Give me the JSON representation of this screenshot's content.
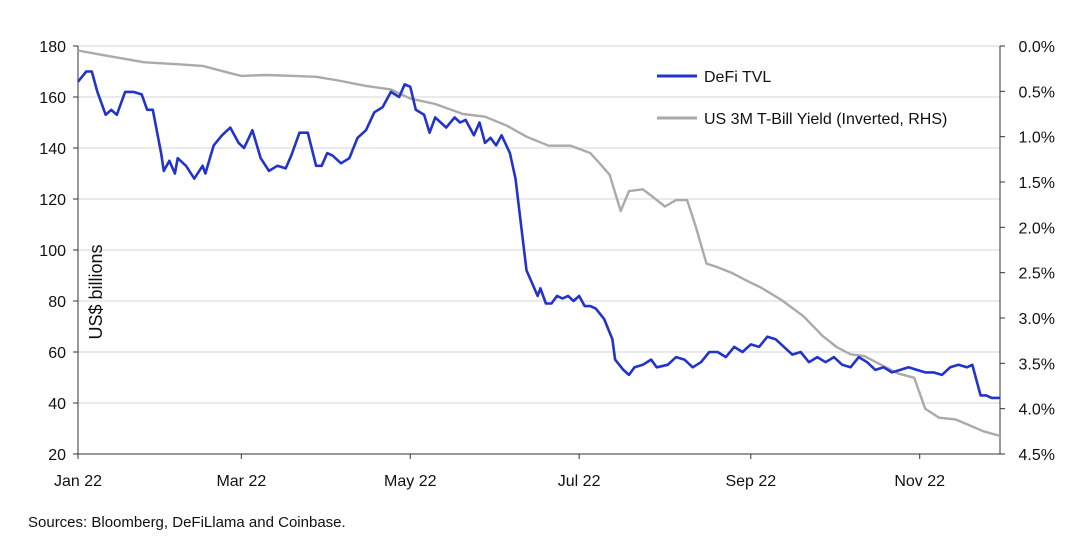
{
  "chart_data": {
    "type": "line",
    "x_labels": [
      "Jan 22",
      "Mar 22",
      "May 22",
      "Jul 22",
      "Sep 22",
      "Nov 22"
    ],
    "x_ticks": [
      "2022-01-01",
      "2022-03-01",
      "2022-05-01",
      "2022-07-01",
      "2022-09-01",
      "2022-11-01"
    ],
    "x_range": [
      "2022-01-01",
      "2022-11-30"
    ],
    "left_axis": {
      "label": "US$ billions",
      "ylim": [
        20,
        180
      ],
      "ticks": [
        180,
        160,
        140,
        120,
        100,
        80,
        60,
        40,
        20
      ]
    },
    "right_axis": {
      "label": "",
      "ylim": [
        0.0,
        4.5
      ],
      "inverted": true,
      "ticks": [
        "0.0%",
        "0.5%",
        "1.0%",
        "1.5%",
        "2.0%",
        "2.5%",
        "3.0%",
        "3.5%",
        "4.0%",
        "4.5%"
      ]
    },
    "grid": true,
    "legend_position": "top-right",
    "series": [
      {
        "name": "DeFi TVL",
        "axis": "left",
        "color": "#2233cc",
        "points": [
          [
            "2022-01-01",
            166
          ],
          [
            "2022-01-04",
            170
          ],
          [
            "2022-01-06",
            170
          ],
          [
            "2022-01-08",
            162
          ],
          [
            "2022-01-11",
            153
          ],
          [
            "2022-01-13",
            155
          ],
          [
            "2022-01-15",
            153
          ],
          [
            "2022-01-18",
            162
          ],
          [
            "2022-01-21",
            162
          ],
          [
            "2022-01-24",
            161
          ],
          [
            "2022-01-26",
            155
          ],
          [
            "2022-01-28",
            155
          ],
          [
            "2022-01-31",
            138
          ],
          [
            "2022-02-01",
            131
          ],
          [
            "2022-02-03",
            135
          ],
          [
            "2022-02-05",
            130
          ],
          [
            "2022-02-06",
            136
          ],
          [
            "2022-02-09",
            133
          ],
          [
            "2022-02-12",
            128
          ],
          [
            "2022-02-15",
            133
          ],
          [
            "2022-02-16",
            130
          ],
          [
            "2022-02-19",
            141
          ],
          [
            "2022-02-22",
            145
          ],
          [
            "2022-02-25",
            148
          ],
          [
            "2022-02-28",
            142
          ],
          [
            "2022-03-02",
            140
          ],
          [
            "2022-03-05",
            147
          ],
          [
            "2022-03-08",
            136
          ],
          [
            "2022-03-11",
            131
          ],
          [
            "2022-03-14",
            133
          ],
          [
            "2022-03-17",
            132
          ],
          [
            "2022-03-19",
            137
          ],
          [
            "2022-03-22",
            146
          ],
          [
            "2022-03-25",
            146
          ],
          [
            "2022-03-28",
            133
          ],
          [
            "2022-03-30",
            133
          ],
          [
            "2022-04-01",
            138
          ],
          [
            "2022-04-03",
            137
          ],
          [
            "2022-04-06",
            134
          ],
          [
            "2022-04-09",
            136
          ],
          [
            "2022-04-12",
            144
          ],
          [
            "2022-04-15",
            147
          ],
          [
            "2022-04-18",
            154
          ],
          [
            "2022-04-21",
            156
          ],
          [
            "2022-04-24",
            162
          ],
          [
            "2022-04-27",
            160
          ],
          [
            "2022-04-29",
            165
          ],
          [
            "2022-05-01",
            164
          ],
          [
            "2022-05-03",
            155
          ],
          [
            "2022-05-06",
            153
          ],
          [
            "2022-05-08",
            146
          ],
          [
            "2022-05-10",
            152
          ],
          [
            "2022-05-12",
            150
          ],
          [
            "2022-05-14",
            148
          ],
          [
            "2022-05-17",
            152
          ],
          [
            "2022-05-19",
            150
          ],
          [
            "2022-05-21",
            151
          ],
          [
            "2022-05-24",
            145
          ],
          [
            "2022-05-26",
            150
          ],
          [
            "2022-05-28",
            142
          ],
          [
            "2022-05-30",
            144
          ],
          [
            "2022-06-01",
            141
          ],
          [
            "2022-06-03",
            145
          ],
          [
            "2022-06-06",
            138
          ],
          [
            "2022-06-08",
            128
          ],
          [
            "2022-06-10",
            110
          ],
          [
            "2022-06-12",
            92
          ],
          [
            "2022-06-14",
            87
          ],
          [
            "2022-06-16",
            82
          ],
          [
            "2022-06-17",
            85
          ],
          [
            "2022-06-19",
            79
          ],
          [
            "2022-06-21",
            79
          ],
          [
            "2022-06-23",
            82
          ],
          [
            "2022-06-25",
            81
          ],
          [
            "2022-06-27",
            82
          ],
          [
            "2022-06-29",
            80
          ],
          [
            "2022-07-01",
            82
          ],
          [
            "2022-07-03",
            78
          ],
          [
            "2022-07-05",
            78
          ],
          [
            "2022-07-07",
            77
          ],
          [
            "2022-07-10",
            73
          ],
          [
            "2022-07-13",
            65
          ],
          [
            "2022-07-14",
            57
          ],
          [
            "2022-07-17",
            53
          ],
          [
            "2022-07-19",
            51
          ],
          [
            "2022-07-21",
            54
          ],
          [
            "2022-07-24",
            55
          ],
          [
            "2022-07-27",
            57
          ],
          [
            "2022-07-29",
            54
          ],
          [
            "2022-08-02",
            55
          ],
          [
            "2022-08-05",
            58
          ],
          [
            "2022-08-08",
            57
          ],
          [
            "2022-08-11",
            54
          ],
          [
            "2022-08-14",
            56
          ],
          [
            "2022-08-17",
            60
          ],
          [
            "2022-08-20",
            60
          ],
          [
            "2022-08-23",
            58
          ],
          [
            "2022-08-26",
            62
          ],
          [
            "2022-08-29",
            60
          ],
          [
            "2022-09-01",
            63
          ],
          [
            "2022-09-04",
            62
          ],
          [
            "2022-09-07",
            66
          ],
          [
            "2022-09-10",
            65
          ],
          [
            "2022-09-13",
            62
          ],
          [
            "2022-09-16",
            59
          ],
          [
            "2022-09-19",
            60
          ],
          [
            "2022-09-22",
            56
          ],
          [
            "2022-09-25",
            58
          ],
          [
            "2022-09-28",
            56
          ],
          [
            "2022-10-01",
            58
          ],
          [
            "2022-10-04",
            55
          ],
          [
            "2022-10-07",
            54
          ],
          [
            "2022-10-10",
            58
          ],
          [
            "2022-10-13",
            56
          ],
          [
            "2022-10-16",
            53
          ],
          [
            "2022-10-19",
            54
          ],
          [
            "2022-10-22",
            52
          ],
          [
            "2022-10-25",
            53
          ],
          [
            "2022-10-28",
            54
          ],
          [
            "2022-10-31",
            53
          ],
          [
            "2022-11-03",
            52
          ],
          [
            "2022-11-06",
            52
          ],
          [
            "2022-11-09",
            51
          ],
          [
            "2022-11-12",
            54
          ],
          [
            "2022-11-15",
            55
          ],
          [
            "2022-11-18",
            54
          ],
          [
            "2022-11-20",
            55
          ],
          [
            "2022-11-23",
            43
          ],
          [
            "2022-11-25",
            43
          ],
          [
            "2022-11-27",
            42
          ],
          [
            "2022-11-30",
            42
          ]
        ]
      },
      {
        "name": "US 3M T-Bill Yield (Inverted, RHS)",
        "axis": "right",
        "color": "#aaaaaa",
        "points": [
          [
            "2022-01-01",
            0.05
          ],
          [
            "2022-01-10",
            0.1
          ],
          [
            "2022-01-25",
            0.18
          ],
          [
            "2022-02-05",
            0.2
          ],
          [
            "2022-02-15",
            0.22
          ],
          [
            "2022-02-25",
            0.3
          ],
          [
            "2022-03-01",
            0.33
          ],
          [
            "2022-03-10",
            0.32
          ],
          [
            "2022-03-20",
            0.33
          ],
          [
            "2022-03-28",
            0.34
          ],
          [
            "2022-04-05",
            0.38
          ],
          [
            "2022-04-15",
            0.44
          ],
          [
            "2022-04-24",
            0.48
          ],
          [
            "2022-05-01",
            0.58
          ],
          [
            "2022-05-10",
            0.64
          ],
          [
            "2022-05-20",
            0.75
          ],
          [
            "2022-05-28",
            0.78
          ],
          [
            "2022-06-05",
            0.88
          ],
          [
            "2022-06-12",
            1.0
          ],
          [
            "2022-06-20",
            1.1
          ],
          [
            "2022-06-28",
            1.1
          ],
          [
            "2022-07-05",
            1.18
          ],
          [
            "2022-07-08",
            1.28
          ],
          [
            "2022-07-12",
            1.42
          ],
          [
            "2022-07-16",
            1.82
          ],
          [
            "2022-07-19",
            1.6
          ],
          [
            "2022-07-24",
            1.58
          ],
          [
            "2022-07-27",
            1.65
          ],
          [
            "2022-08-01",
            1.77
          ],
          [
            "2022-08-05",
            1.7
          ],
          [
            "2022-08-09",
            1.7
          ],
          [
            "2022-08-12",
            1.98
          ],
          [
            "2022-08-16",
            2.4
          ],
          [
            "2022-08-20",
            2.44
          ],
          [
            "2022-08-25",
            2.5
          ],
          [
            "2022-08-30",
            2.58
          ],
          [
            "2022-09-05",
            2.67
          ],
          [
            "2022-09-12",
            2.8
          ],
          [
            "2022-09-20",
            2.98
          ],
          [
            "2022-09-27",
            3.2
          ],
          [
            "2022-10-02",
            3.32
          ],
          [
            "2022-10-07",
            3.4
          ],
          [
            "2022-10-12",
            3.42
          ],
          [
            "2022-10-17",
            3.5
          ],
          [
            "2022-10-24",
            3.61
          ],
          [
            "2022-10-30",
            3.66
          ],
          [
            "2022-11-03",
            4.0
          ],
          [
            "2022-11-08",
            4.1
          ],
          [
            "2022-11-14",
            4.12
          ],
          [
            "2022-11-18",
            4.17
          ],
          [
            "2022-11-24",
            4.25
          ],
          [
            "2022-11-30",
            4.3
          ]
        ]
      }
    ]
  },
  "legend": [
    {
      "label": "DeFi TVL",
      "color": "#2233cc"
    },
    {
      "label": "US 3M T-Bill Yield (Inverted, RHS)",
      "color": "#aaaaaa"
    }
  ],
  "ylabel_text": "US$ billions",
  "source_text": "Sources: Bloomberg, DeFiLlama and Coinbase."
}
